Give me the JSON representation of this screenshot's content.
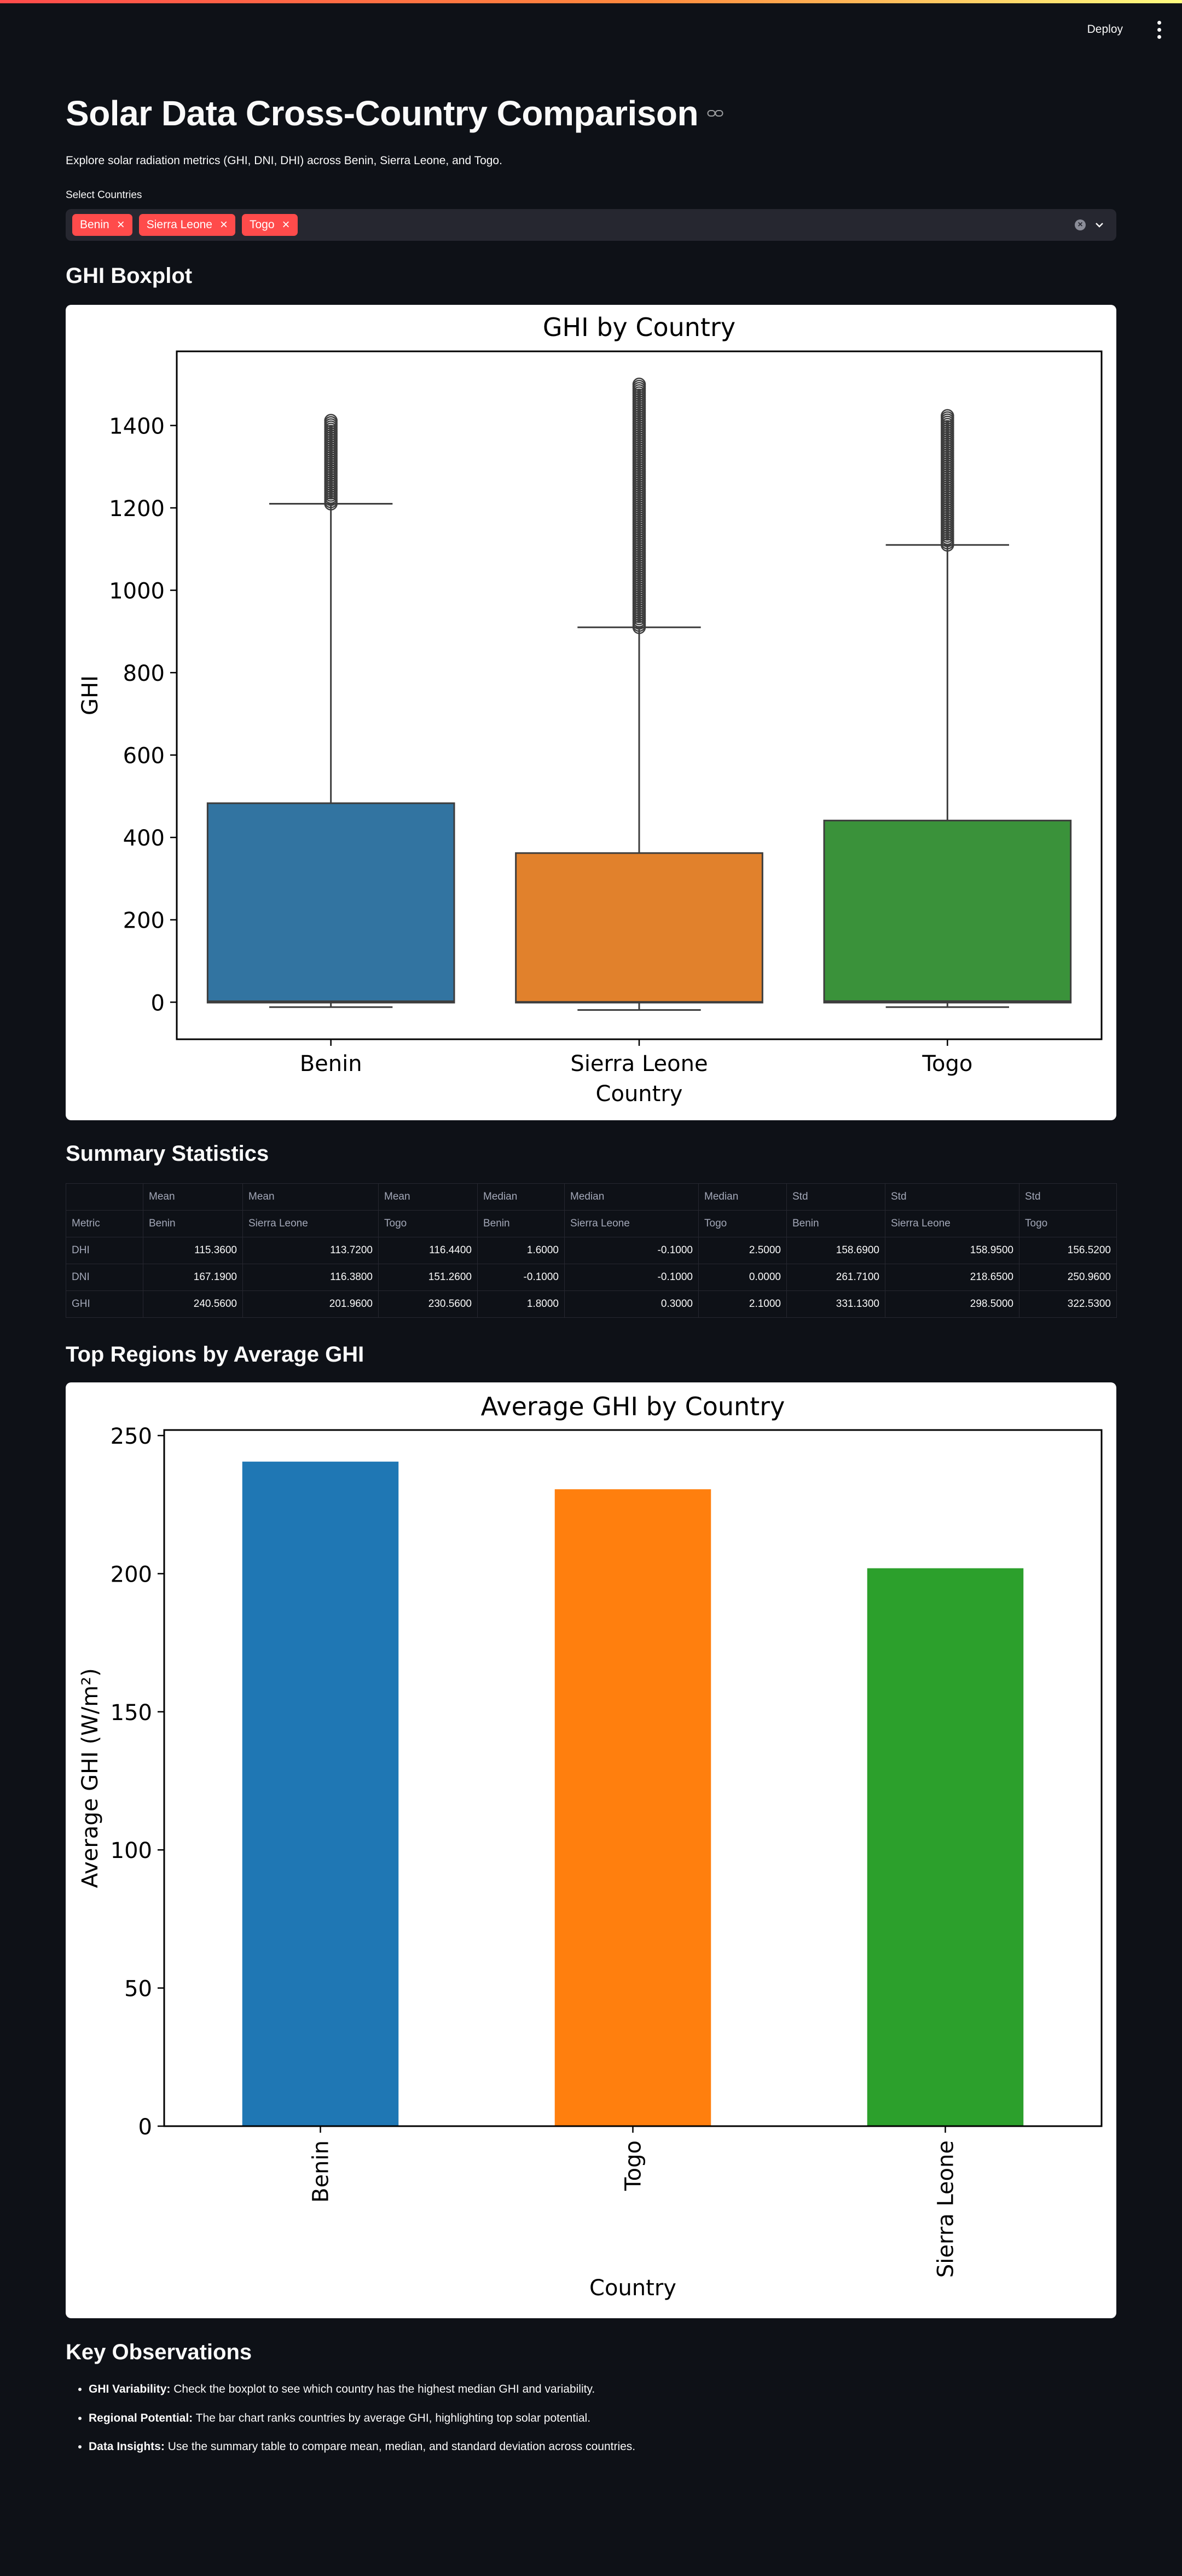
{
  "toolbar": {
    "deploy_label": "Deploy"
  },
  "page": {
    "title": "Solar Data Cross-Country Comparison",
    "subtitle": "Explore solar radiation metrics (GHI, DNI, DHI) across Benin, Sierra Leone, and Togo."
  },
  "country_select": {
    "label": "Select Countries",
    "selected": [
      "Benin",
      "Sierra Leone",
      "Togo"
    ]
  },
  "sections": {
    "boxplot": "GHI Boxplot",
    "summary": "Summary Statistics",
    "top_regions": "Top Regions by Average GHI",
    "observations": "Key Observations"
  },
  "summary_table": {
    "header_row1": [
      "",
      "Mean",
      "Mean",
      "Mean",
      "Median",
      "Median",
      "Median",
      "Std",
      "Std",
      "Std"
    ],
    "header_row2": [
      "Metric",
      "Benin",
      "Sierra Leone",
      "Togo",
      "Benin",
      "Sierra Leone",
      "Togo",
      "Benin",
      "Sierra Leone",
      "Togo"
    ],
    "rows": [
      {
        "metric": "DHI",
        "values": [
          "115.3600",
          "113.7200",
          "116.4400",
          "1.6000",
          "-0.1000",
          "2.5000",
          "158.6900",
          "158.9500",
          "156.5200"
        ]
      },
      {
        "metric": "DNI",
        "values": [
          "167.1900",
          "116.3800",
          "151.2600",
          "-0.1000",
          "-0.1000",
          "0.0000",
          "261.7100",
          "218.6500",
          "250.9600"
        ]
      },
      {
        "metric": "GHI",
        "values": [
          "240.5600",
          "201.9600",
          "230.5600",
          "1.8000",
          "0.3000",
          "2.1000",
          "331.1300",
          "298.5000",
          "322.5300"
        ]
      }
    ]
  },
  "observations": [
    {
      "label": "GHI Variability:",
      "text": " Check the boxplot to see which country has the highest median GHI and variability."
    },
    {
      "label": "Regional Potential:",
      "text": " The bar chart ranks countries by average GHI, highlighting top solar potential."
    },
    {
      "label": "Data Insights:",
      "text": " Use the summary table to compare mean, median, and standard deviation across countries."
    }
  ],
  "chart_data": [
    {
      "type": "box",
      "title": "GHI by Country",
      "xlabel": "Country",
      "ylabel": "GHI",
      "ylim": [
        -90,
        1580
      ],
      "yticks": [
        0,
        200,
        400,
        600,
        800,
        1000,
        1200,
        1400
      ],
      "grid": false,
      "categories": [
        "Benin",
        "Sierra Leone",
        "Togo"
      ],
      "colors": [
        "#3274a1",
        "#e1812c",
        "#3a923a"
      ],
      "boxes": [
        {
          "name": "Benin",
          "whisker_low": -12,
          "q1": -1,
          "median": 1.8,
          "q3": 483,
          "whisker_high": 1210,
          "outlier_max": 1415
        },
        {
          "name": "Sierra Leone",
          "whisker_low": -19,
          "q1": -1,
          "median": 0.3,
          "q3": 362,
          "whisker_high": 910,
          "outlier_max": 1500
        },
        {
          "name": "Togo",
          "whisker_low": -12,
          "q1": -1,
          "median": 2.1,
          "q3": 441,
          "whisker_high": 1110,
          "outlier_max": 1425
        }
      ]
    },
    {
      "type": "bar",
      "title": "Average GHI by Country",
      "xlabel": "Country",
      "ylabel": "Average GHI (W/m²)",
      "ylim": [
        0,
        252
      ],
      "yticks": [
        0,
        50,
        100,
        150,
        200,
        250
      ],
      "grid": false,
      "categories": [
        "Benin",
        "Togo",
        "Sierra Leone"
      ],
      "values": [
        240.56,
        230.56,
        201.96
      ],
      "colors": [
        "#1f77b4",
        "#ff7f0e",
        "#2ca02c"
      ]
    }
  ]
}
